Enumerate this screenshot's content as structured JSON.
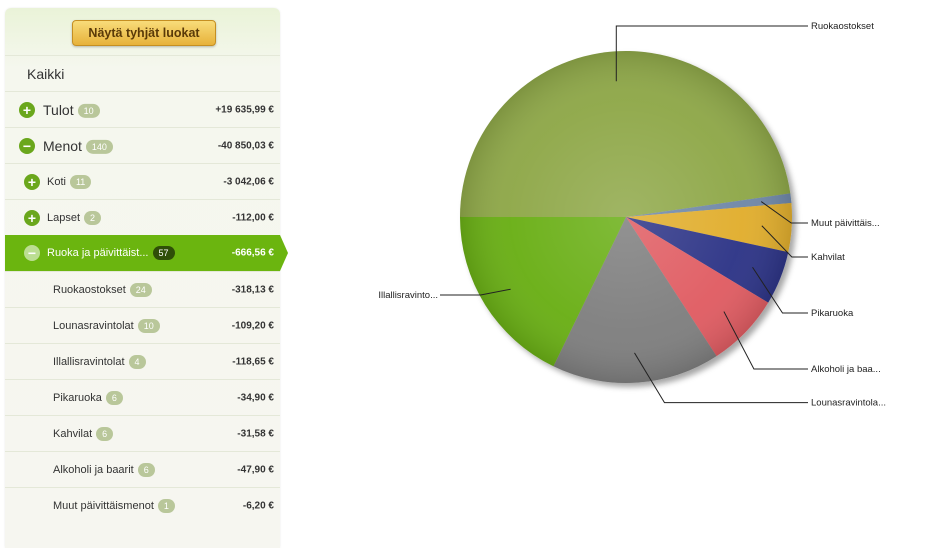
{
  "sidebar": {
    "show_empty_button": "Näytä tyhjät luokat",
    "all_label": "Kaikki",
    "rows": [
      {
        "label": "Tulot",
        "count": "10",
        "amount": "+19 635,99 €",
        "toggle": "+",
        "level": 0
      },
      {
        "label": "Menot",
        "count": "140",
        "amount": "-40 850,03 €",
        "toggle": "−",
        "level": 0
      },
      {
        "label": "Koti",
        "count": "11",
        "amount": "-3 042,06 €",
        "toggle": "+",
        "level": 1
      },
      {
        "label": "Lapset",
        "count": "2",
        "amount": "-112,00 €",
        "toggle": "+",
        "level": 1
      },
      {
        "label": "Ruoka ja päivittäist...",
        "count": "57",
        "amount": "-666,56 €",
        "toggle": "−",
        "level": 1,
        "selected": true
      },
      {
        "label": "Ruokaostokset",
        "count": "24",
        "amount": "-318,13 €",
        "level": 2
      },
      {
        "label": "Lounasravintolat",
        "count": "10",
        "amount": "-109,20 €",
        "level": 2
      },
      {
        "label": "Illallisravintolat",
        "count": "4",
        "amount": "-118,65 €",
        "level": 2
      },
      {
        "label": "Pikaruoka",
        "count": "6",
        "amount": "-34,90 €",
        "level": 2
      },
      {
        "label": "Kahvilat",
        "count": "6",
        "amount": "-31,58 €",
        "level": 2
      },
      {
        "label": "Alkoholi ja baarit",
        "count": "6",
        "amount": "-47,90 €",
        "level": 2
      },
      {
        "label": "Muut päivittäismenot",
        "count": "1",
        "amount": "-6,20 €",
        "level": 2
      }
    ]
  },
  "chart_data": {
    "type": "pie",
    "slices": [
      {
        "label": "Ruokaostokset",
        "value": 318.13,
        "color": "#8fa84a"
      },
      {
        "label": "Muut päivittäis...",
        "value": 6.2,
        "color": "#6f88a8"
      },
      {
        "label": "Kahvilat",
        "value": 31.58,
        "color": "#e1ae2f"
      },
      {
        "label": "Pikaruoka",
        "value": 34.9,
        "color": "#2e3587"
      },
      {
        "label": "Alkoholi ja baa...",
        "value": 47.9,
        "color": "#e05d63"
      },
      {
        "label": "Lounasravintola...",
        "value": 109.2,
        "color": "#7f7f7f"
      },
      {
        "label": "Illallisravinto...",
        "value": 118.65,
        "color": "#6aaf19"
      }
    ]
  }
}
